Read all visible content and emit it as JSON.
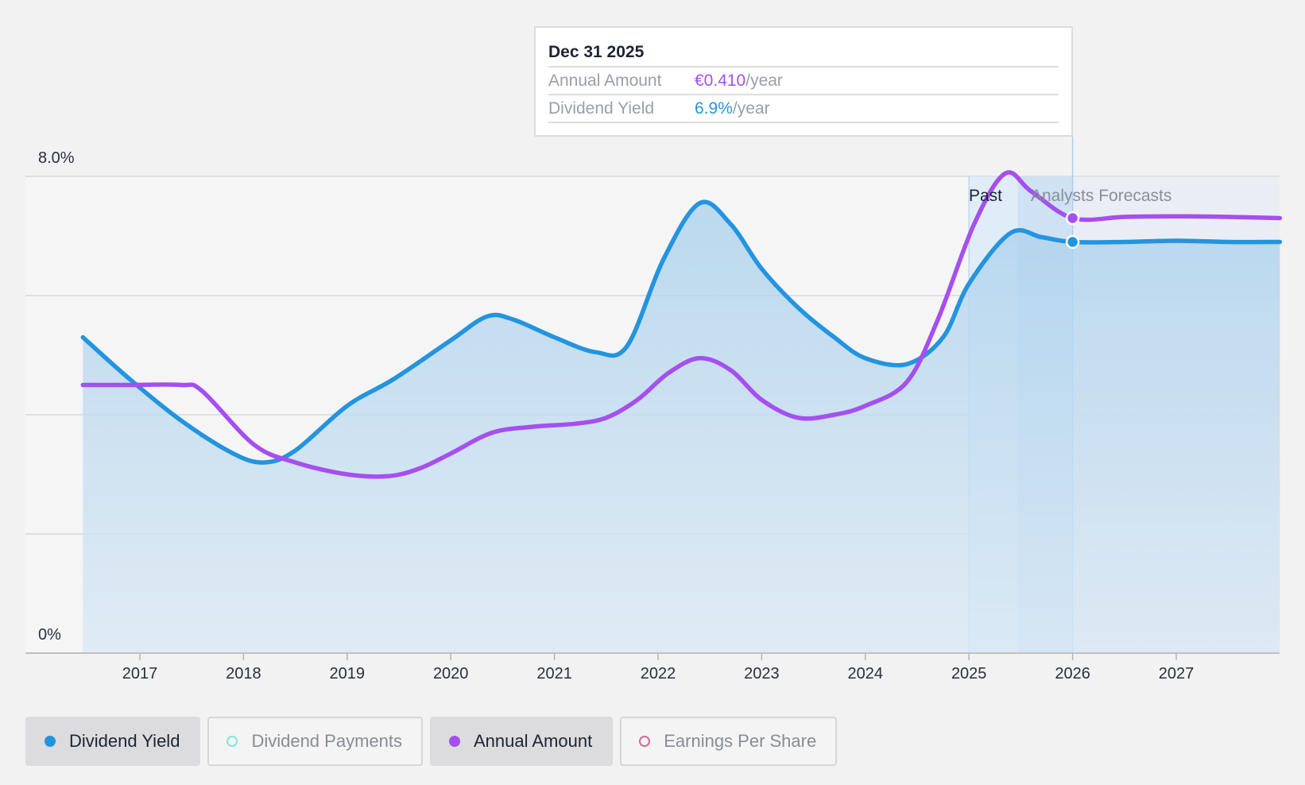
{
  "chart_data": {
    "type": "line",
    "title": "",
    "y_axis": {
      "min": 0,
      "max": 8.0,
      "top_label": "8.0%",
      "bottom_label": "0%"
    },
    "x_ticks": [
      "2017",
      "2018",
      "2019",
      "2020",
      "2021",
      "2022",
      "2023",
      "2024",
      "2025",
      "2026",
      "2027"
    ],
    "x_range": [
      2016.0,
      2028.0
    ],
    "past_region_label": "Past",
    "forecast_region_label": "Analysts Forecasts",
    "series": [
      {
        "name": "Dividend Yield",
        "unit": "%",
        "color": "#2394df",
        "filled": true,
        "points": [
          [
            2016.45,
            5.3
          ],
          [
            2016.9,
            4.6
          ],
          [
            2017.4,
            3.9
          ],
          [
            2017.9,
            3.35
          ],
          [
            2018.2,
            3.2
          ],
          [
            2018.5,
            3.4
          ],
          [
            2019.0,
            4.15
          ],
          [
            2019.45,
            4.6
          ],
          [
            2020.0,
            5.25
          ],
          [
            2020.35,
            5.65
          ],
          [
            2020.6,
            5.6
          ],
          [
            2021.0,
            5.3
          ],
          [
            2021.4,
            5.05
          ],
          [
            2021.7,
            5.15
          ],
          [
            2022.05,
            6.6
          ],
          [
            2022.4,
            7.55
          ],
          [
            2022.7,
            7.2
          ],
          [
            2023.0,
            6.45
          ],
          [
            2023.35,
            5.8
          ],
          [
            2023.7,
            5.3
          ],
          [
            2024.0,
            4.95
          ],
          [
            2024.4,
            4.85
          ],
          [
            2024.75,
            5.3
          ],
          [
            2025.0,
            6.2
          ],
          [
            2025.4,
            7.05
          ],
          [
            2025.7,
            6.98
          ],
          [
            2026.0,
            6.9
          ],
          [
            2026.5,
            6.9
          ],
          [
            2027.0,
            6.92
          ],
          [
            2027.5,
            6.9
          ],
          [
            2028.0,
            6.9
          ]
        ]
      },
      {
        "name": "Annual Amount",
        "unit": "€",
        "color": "#a64ff0",
        "filled": false,
        "points": [
          [
            2016.45,
            4.5
          ],
          [
            2016.9,
            4.5
          ],
          [
            2017.4,
            4.5
          ],
          [
            2017.6,
            4.4
          ],
          [
            2018.1,
            3.5
          ],
          [
            2018.5,
            3.2
          ],
          [
            2019.0,
            3.0
          ],
          [
            2019.4,
            2.97
          ],
          [
            2019.7,
            3.1
          ],
          [
            2020.0,
            3.35
          ],
          [
            2020.4,
            3.7
          ],
          [
            2020.8,
            3.8
          ],
          [
            2021.2,
            3.85
          ],
          [
            2021.5,
            3.95
          ],
          [
            2021.8,
            4.25
          ],
          [
            2022.1,
            4.7
          ],
          [
            2022.4,
            4.95
          ],
          [
            2022.7,
            4.75
          ],
          [
            2023.0,
            4.25
          ],
          [
            2023.35,
            3.95
          ],
          [
            2023.7,
            4.0
          ],
          [
            2024.0,
            4.15
          ],
          [
            2024.4,
            4.55
          ],
          [
            2024.7,
            5.6
          ],
          [
            2025.05,
            7.2
          ],
          [
            2025.35,
            8.05
          ],
          [
            2025.6,
            7.75
          ],
          [
            2026.0,
            7.3
          ],
          [
            2026.5,
            7.32
          ],
          [
            2027.0,
            7.33
          ],
          [
            2027.5,
            7.32
          ],
          [
            2028.0,
            7.3
          ]
        ]
      }
    ],
    "highlight_x": 2026.0,
    "tooltip": {
      "date": "Dec 31 2025",
      "rows": [
        {
          "key": "Annual Amount",
          "value": "€0.410",
          "suffix": "/year",
          "color": "#a64ff0"
        },
        {
          "key": "Dividend Yield",
          "value": "6.9%",
          "suffix": "/year",
          "color": "#2394df"
        }
      ]
    },
    "legend": [
      {
        "label": "Dividend Yield",
        "color": "#2394df",
        "active": true,
        "filled": true
      },
      {
        "label": "Dividend Payments",
        "color": "#7ee6d8",
        "active": false,
        "filled": false
      },
      {
        "label": "Annual Amount",
        "color": "#a64ff0",
        "active": true,
        "filled": true
      },
      {
        "label": "Earnings Per Share",
        "color": "#d06a98",
        "active": false,
        "filled": false
      }
    ]
  }
}
